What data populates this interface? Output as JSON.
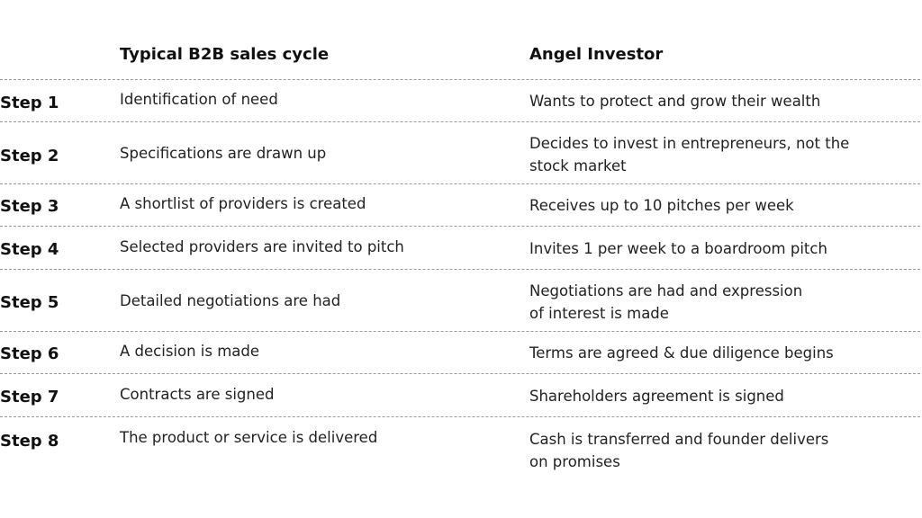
{
  "headers": {
    "col1": "",
    "col2": "Typical B2B sales cycle",
    "col3": "Angel Investor"
  },
  "rows": [
    {
      "step": "Step 1",
      "b2b": "Identification of need",
      "angel": "Wants to protect and grow their wealth"
    },
    {
      "step": "Step 2",
      "b2b": "Specifications are drawn up",
      "angel": "Decides to invest in entrepreneurs, not the stock market"
    },
    {
      "step": "Step 3",
      "b2b": "A shortlist of providers is created",
      "angel": "Receives up to 10 pitches per week"
    },
    {
      "step": "Step 4",
      "b2b": "Selected providers are invited to pitch",
      "angel": "Invites 1 per week to a boardroom pitch"
    },
    {
      "step": "Step 5",
      "b2b": "Detailed negotiations are had",
      "angel": "Negotiations are had and expression\nof interest is made"
    },
    {
      "step": "Step 6",
      "b2b": "A decision is made",
      "angel": "Terms are agreed & due diligence begins"
    },
    {
      "step": "Step 7",
      "b2b": "Contracts are signed",
      "angel": "Shareholders agreement is signed"
    },
    {
      "step": "Step 8",
      "b2b": "The product or service is delivered",
      "angel": "Cash is transferred and founder delivers\non promises"
    }
  ]
}
